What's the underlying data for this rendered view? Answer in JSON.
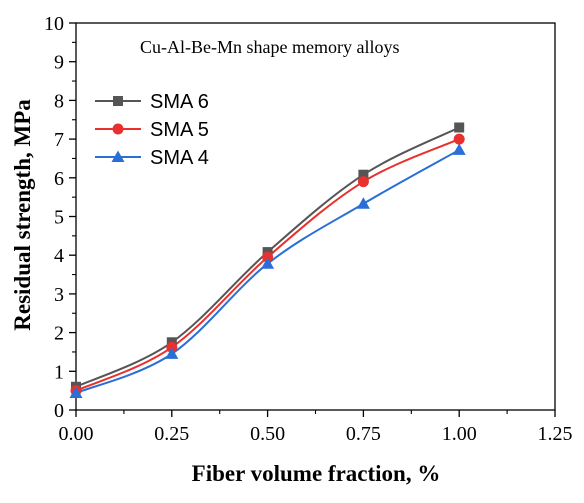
{
  "chart_data": {
    "type": "line",
    "title": "",
    "annotation": "Cu-Al-Be-Mn shape memory alloys",
    "xlabel": "Fiber volume fraction, %",
    "ylabel": "Residual strength, MPa",
    "xlim": [
      0,
      1.25
    ],
    "ylim": [
      0,
      10
    ],
    "xticks": [
      0.0,
      0.25,
      0.5,
      0.75,
      1.0,
      1.25
    ],
    "xtick_labels": [
      "0.00",
      "0.25",
      "0.50",
      "0.75",
      "1.00",
      "1.25"
    ],
    "yticks": [
      0,
      1,
      2,
      3,
      4,
      5,
      6,
      7,
      8,
      9,
      10
    ],
    "ytick_labels": [
      "0",
      "1",
      "2",
      "3",
      "4",
      "5",
      "6",
      "7",
      "8",
      "9",
      "10"
    ],
    "grid": false,
    "legend_position": "top-left",
    "x": [
      0.0,
      0.25,
      0.5,
      0.75,
      1.0
    ],
    "series": [
      {
        "name": "SMA 6",
        "values": [
          0.6,
          1.75,
          4.08,
          6.08,
          7.3
        ],
        "color": "#555555",
        "marker": "square"
      },
      {
        "name": "SMA 5",
        "values": [
          0.5,
          1.62,
          3.95,
          5.9,
          7.0
        ],
        "color": "#e8302e",
        "marker": "circle"
      },
      {
        "name": "SMA 4",
        "values": [
          0.44,
          1.45,
          3.78,
          5.33,
          6.72
        ],
        "color": "#2a6fd6",
        "marker": "triangle"
      }
    ]
  }
}
